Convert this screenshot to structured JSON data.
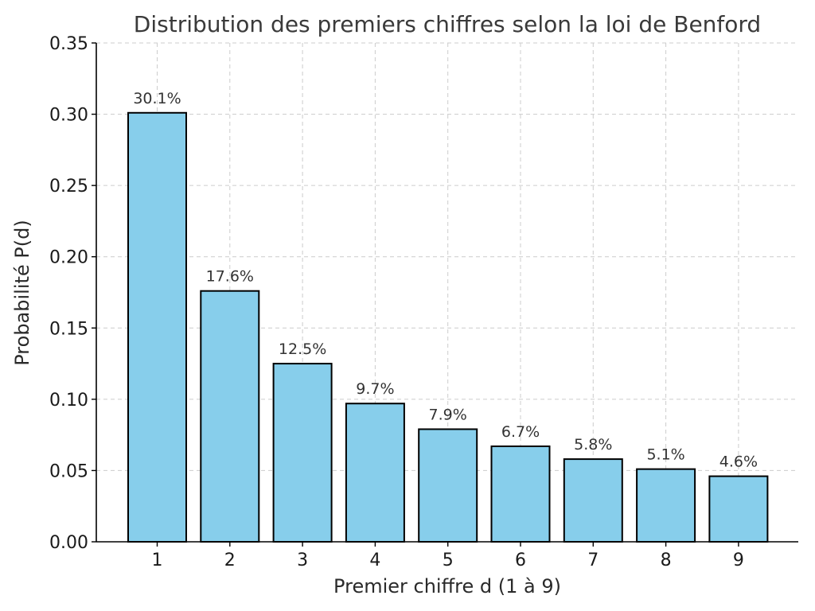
{
  "chart_data": {
    "type": "bar",
    "title": "Distribution des premiers chiffres selon la loi de Benford",
    "xlabel": "Premier chiffre d (1 à 9)",
    "ylabel": "Probabilité P(d)",
    "categories": [
      "1",
      "2",
      "3",
      "4",
      "5",
      "6",
      "7",
      "8",
      "9"
    ],
    "values": [
      0.301,
      0.176,
      0.125,
      0.097,
      0.079,
      0.067,
      0.058,
      0.051,
      0.046
    ],
    "data_labels": [
      "30.1%",
      "17.6%",
      "12.5%",
      "9.7%",
      "7.9%",
      "6.7%",
      "5.8%",
      "5.1%",
      "4.6%"
    ],
    "ylim": [
      0,
      0.35
    ],
    "yticks": [
      0.0,
      0.05,
      0.1,
      0.15,
      0.2,
      0.25,
      0.3,
      0.35
    ],
    "ytick_labels": [
      "0.00",
      "0.05",
      "0.10",
      "0.15",
      "0.20",
      "0.25",
      "0.30",
      "0.35"
    ],
    "grid": true,
    "colors": {
      "bar_fill": "#87ceeb",
      "bar_edge": "#000000",
      "grid": "#cccccc"
    }
  }
}
